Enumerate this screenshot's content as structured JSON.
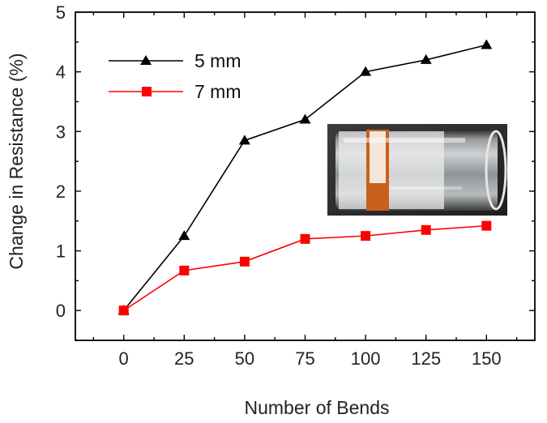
{
  "chart_data": {
    "type": "line",
    "xlabel": "Number of Bends",
    "ylabel": "Change in Resistance (%)",
    "x": [
      0,
      25,
      50,
      75,
      100,
      125,
      150
    ],
    "xlim": [
      -20,
      170
    ],
    "ylim": [
      -0.5,
      5
    ],
    "xticks": [
      "0",
      "25",
      "50",
      "75",
      "100",
      "125",
      "150"
    ],
    "yticks": [
      "0",
      "1",
      "2",
      "3",
      "4",
      "5"
    ],
    "legend_position": "top-left",
    "grid": false,
    "series": [
      {
        "name": "5 mm",
        "marker": "triangle",
        "color": "#000000",
        "values": [
          0,
          1.25,
          2.85,
          3.2,
          4.0,
          4.2,
          4.45
        ]
      },
      {
        "name": "7 mm",
        "marker": "square",
        "color": "#ff0000",
        "values": [
          0,
          0.67,
          0.82,
          1.2,
          1.25,
          1.35,
          1.42
        ]
      }
    ],
    "inset": "photo of a copper strip sensor taped around a clear glass tube"
  }
}
